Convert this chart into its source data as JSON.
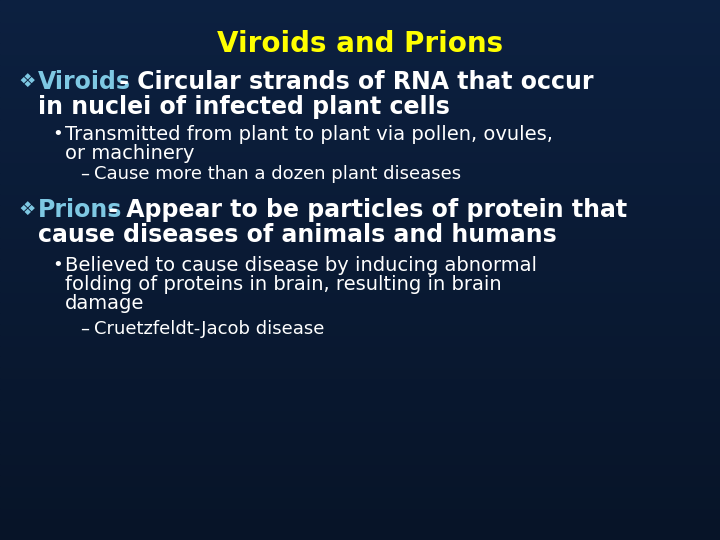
{
  "title": "Viroids and Prions",
  "title_color": "#FFFF00",
  "title_fontsize": 20,
  "bg_color": "#071428",
  "text_color_white": "#FFFFFF",
  "text_color_cyan": "#7ec8e3",
  "bullet_diamond": "❖",
  "viroids_label": "Viroids",
  "viroids_desc": " - Circular strands of RNA that occur\nin nuclei of infected plant cells",
  "bullet1_text": "Transmitted from plant to plant via pollen, ovules,\nor machinery",
  "dash1_text": "Cause more than a dozen plant diseases",
  "prions_label": "Prions",
  "prions_desc": " - Appear to be particles of protein that\ncause diseases of animals and humans",
  "bullet2_text": "Believed to cause disease by inducing abnormal\nfolding of proteins in brain, resulting in brain\ndamage",
  "dash2_text": "Cruetzfeldt-Jacob disease",
  "main_fontsize": 17,
  "sub_fontsize": 14,
  "dash_fontsize": 13
}
